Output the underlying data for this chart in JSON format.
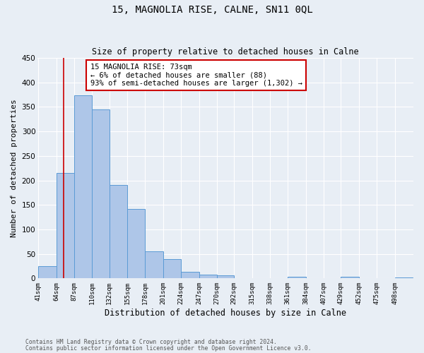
{
  "title": "15, MAGNOLIA RISE, CALNE, SN11 0QL",
  "subtitle": "Size of property relative to detached houses in Calne",
  "xlabel": "Distribution of detached houses by size in Calne",
  "ylabel": "Number of detached properties",
  "bar_edges": [
    41,
    64,
    87,
    110,
    132,
    155,
    178,
    201,
    224,
    247,
    270,
    292,
    315,
    338,
    361,
    384,
    407,
    429,
    452,
    475,
    498
  ],
  "bar_heights": [
    25,
    215,
    373,
    345,
    190,
    142,
    55,
    40,
    14,
    8,
    6,
    0,
    0,
    0,
    3,
    0,
    0,
    3,
    0,
    0,
    2
  ],
  "bar_color": "#aec6e8",
  "bar_edge_color": "#5b9bd5",
  "vline_x": 73,
  "vline_color": "#cc0000",
  "ylim": [
    0,
    450
  ],
  "yticks": [
    0,
    50,
    100,
    150,
    200,
    250,
    300,
    350,
    400,
    450
  ],
  "annotation_box_line1": "15 MAGNOLIA RISE: 73sqm",
  "annotation_box_line2": "← 6% of detached houses are smaller (88)",
  "annotation_box_line3": "93% of semi-detached houses are larger (1,302) →",
  "annotation_box_color": "#cc0000",
  "annotation_box_bg": "#ffffff",
  "footnote1": "Contains HM Land Registry data © Crown copyright and database right 2024.",
  "footnote2": "Contains public sector information licensed under the Open Government Licence v3.0.",
  "bg_color": "#e8eef5",
  "grid_color": "#ffffff",
  "tick_labels": [
    "41sqm",
    "64sqm",
    "87sqm",
    "110sqm",
    "132sqm",
    "155sqm",
    "178sqm",
    "201sqm",
    "224sqm",
    "247sqm",
    "270sqm",
    "292sqm",
    "315sqm",
    "338sqm",
    "361sqm",
    "384sqm",
    "407sqm",
    "429sqm",
    "452sqm",
    "475sqm",
    "498sqm"
  ]
}
